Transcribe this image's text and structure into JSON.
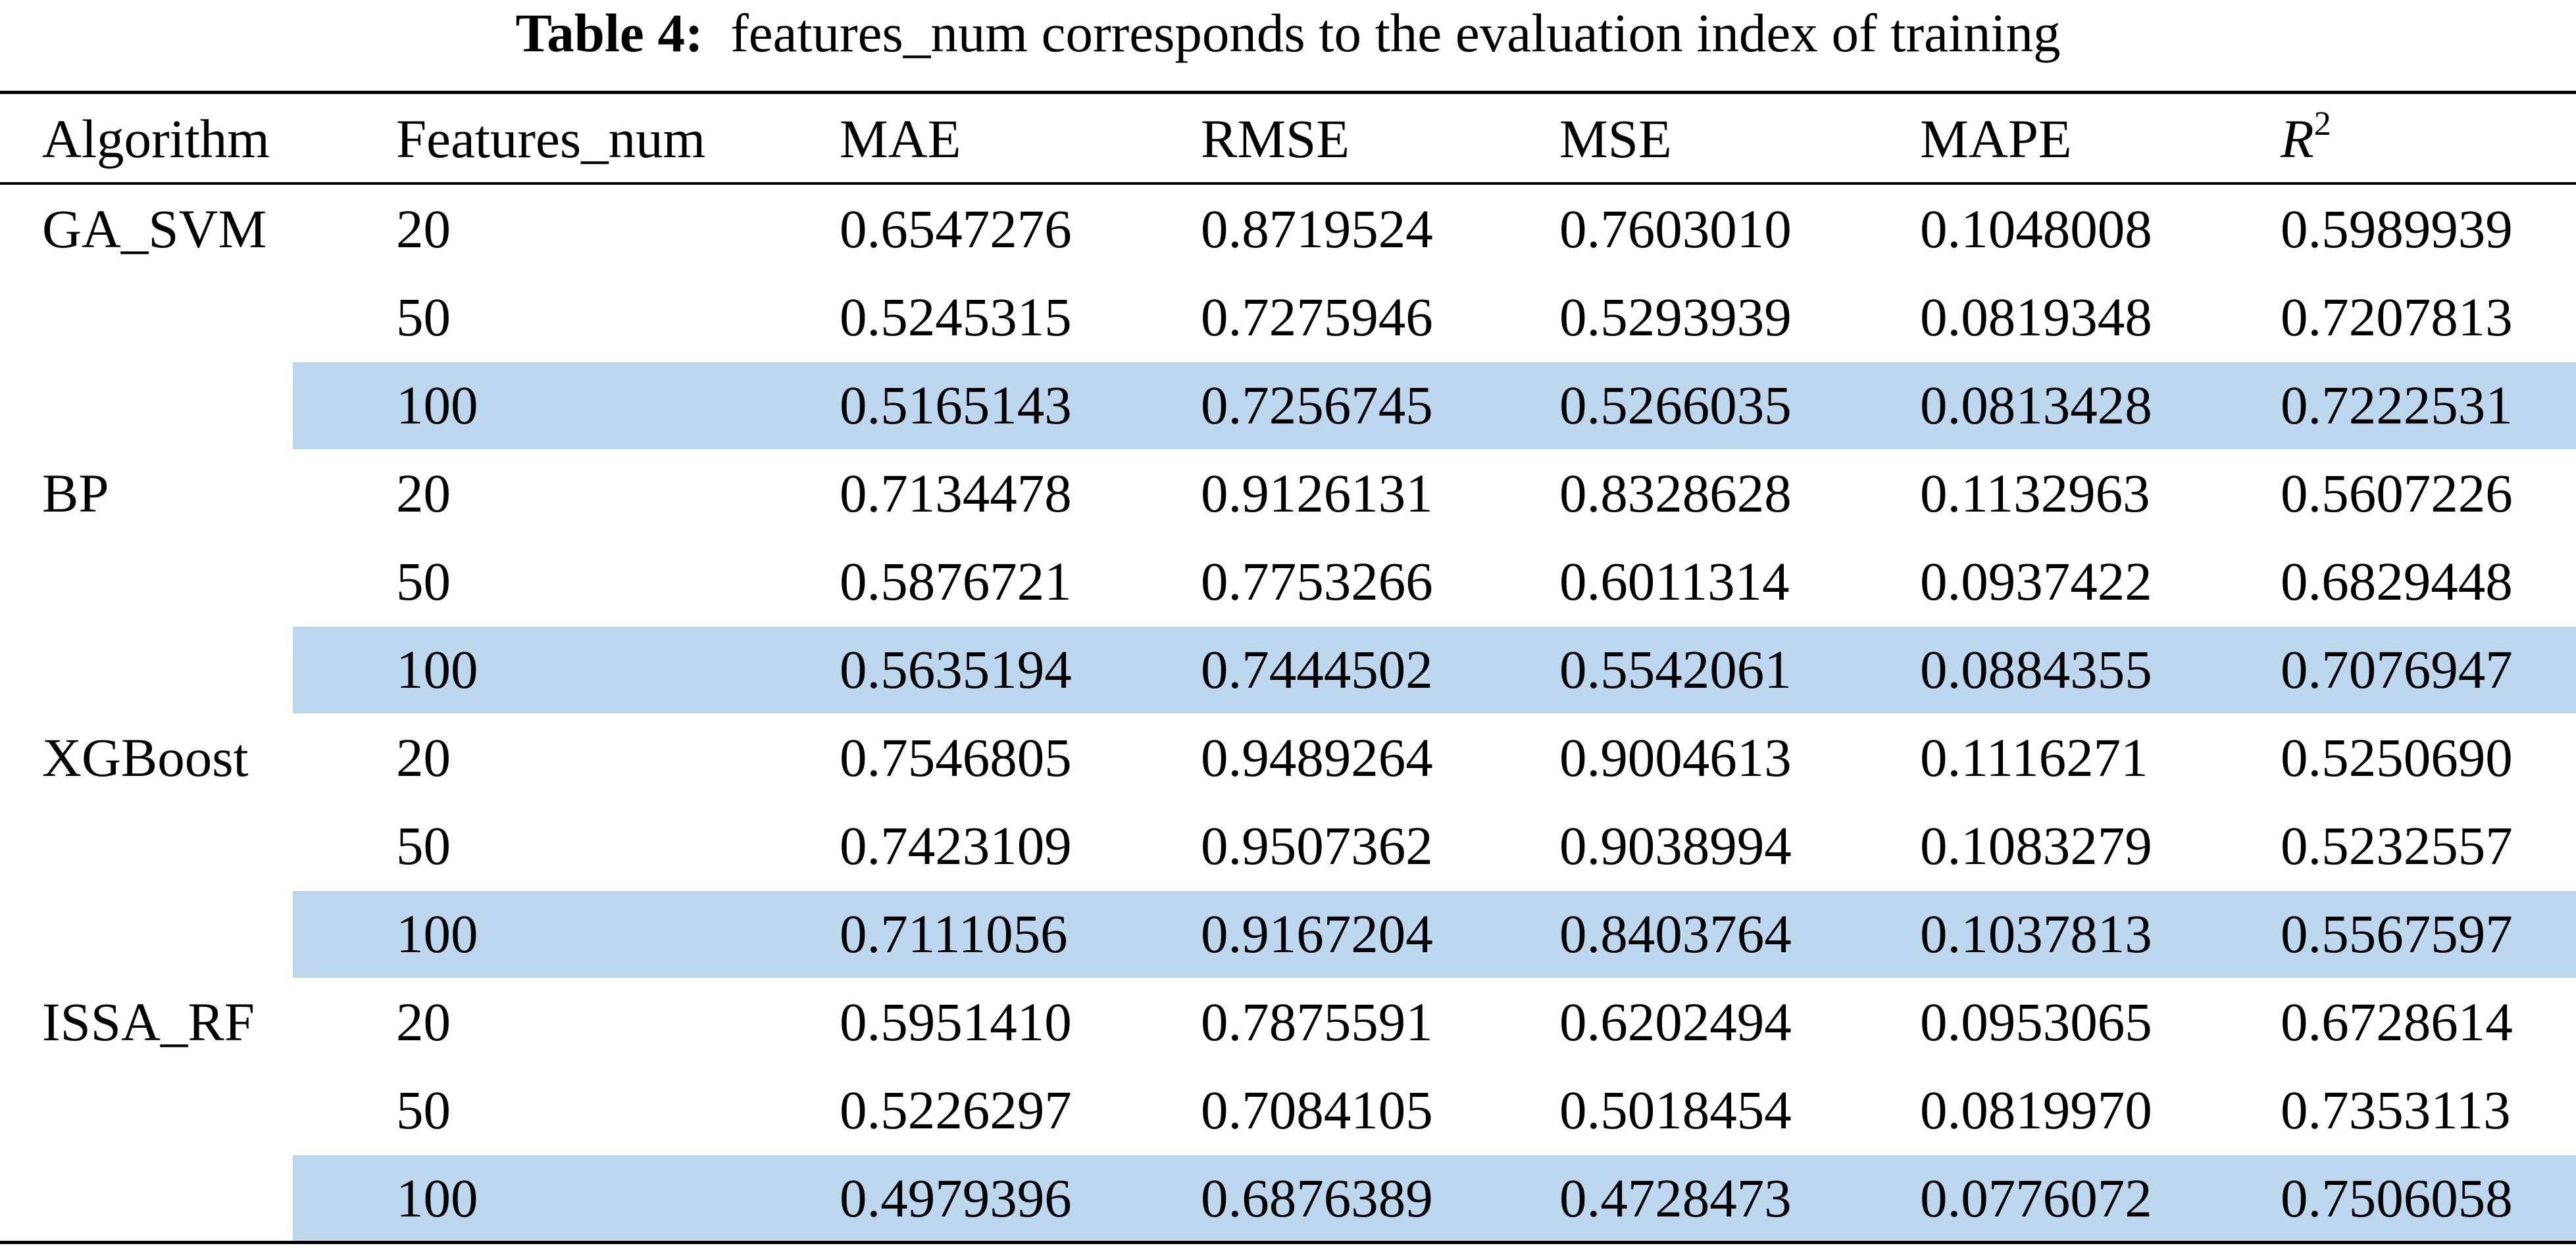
{
  "caption": {
    "label": "Table 4:",
    "text": "features_num corresponds to the evaluation index of training"
  },
  "table": {
    "columns": [
      "Algorithm",
      "Features_num",
      "MAE",
      "RMSE",
      "MSE",
      "MAPE",
      "R"
    ],
    "r2_superscript": "2",
    "rows": [
      {
        "algorithm": "GA_SVM",
        "features": "20",
        "mae": "0.6547276",
        "rmse": "0.8719524",
        "mse": "0.7603010",
        "mape": "0.1048008",
        "r2": "0.5989939",
        "highlight": false
      },
      {
        "algorithm": "",
        "features": "50",
        "mae": "0.5245315",
        "rmse": "0.7275946",
        "mse": "0.5293939",
        "mape": "0.0819348",
        "r2": "0.7207813",
        "highlight": false
      },
      {
        "algorithm": "",
        "features": "100",
        "mae": "0.5165143",
        "rmse": "0.7256745",
        "mse": "0.5266035",
        "mape": "0.0813428",
        "r2": "0.7222531",
        "highlight": true
      },
      {
        "algorithm": "BP",
        "features": "20",
        "mae": "0.7134478",
        "rmse": "0.9126131",
        "mse": "0.8328628",
        "mape": "0.1132963",
        "r2": "0.5607226",
        "highlight": false
      },
      {
        "algorithm": "",
        "features": "50",
        "mae": "0.5876721",
        "rmse": "0.7753266",
        "mse": "0.6011314",
        "mape": "0.0937422",
        "r2": "0.6829448",
        "highlight": false
      },
      {
        "algorithm": "",
        "features": "100",
        "mae": "0.5635194",
        "rmse": "0.7444502",
        "mse": "0.5542061",
        "mape": "0.0884355",
        "r2": "0.7076947",
        "highlight": true
      },
      {
        "algorithm": "XGBoost",
        "features": "20",
        "mae": "0.7546805",
        "rmse": "0.9489264",
        "mse": "0.9004613",
        "mape": "0.1116271",
        "r2": "0.5250690",
        "highlight": false
      },
      {
        "algorithm": "",
        "features": "50",
        "mae": "0.7423109",
        "rmse": "0.9507362",
        "mse": "0.9038994",
        "mape": "0.1083279",
        "r2": "0.5232557",
        "highlight": false
      },
      {
        "algorithm": "",
        "features": "100",
        "mae": "0.7111056",
        "rmse": "0.9167204",
        "mse": "0.8403764",
        "mape": "0.1037813",
        "r2": "0.5567597",
        "highlight": true
      },
      {
        "algorithm": "ISSA_RF",
        "features": "20",
        "mae": "0.5951410",
        "rmse": "0.7875591",
        "mse": "0.6202494",
        "mape": "0.0953065",
        "r2": "0.6728614",
        "highlight": false
      },
      {
        "algorithm": "",
        "features": "50",
        "mae": "0.5226297",
        "rmse": "0.7084105",
        "mse": "0.5018454",
        "mape": "0.0819970",
        "r2": "0.7353113",
        "highlight": false
      },
      {
        "algorithm": "",
        "features": "100",
        "mae": "0.4979396",
        "rmse": "0.6876389",
        "mse": "0.4728473",
        "mape": "0.0776072",
        "r2": "0.7506058",
        "highlight": true
      }
    ]
  },
  "colors": {
    "highlight": "#bdd7ee",
    "rule": "#000000"
  }
}
